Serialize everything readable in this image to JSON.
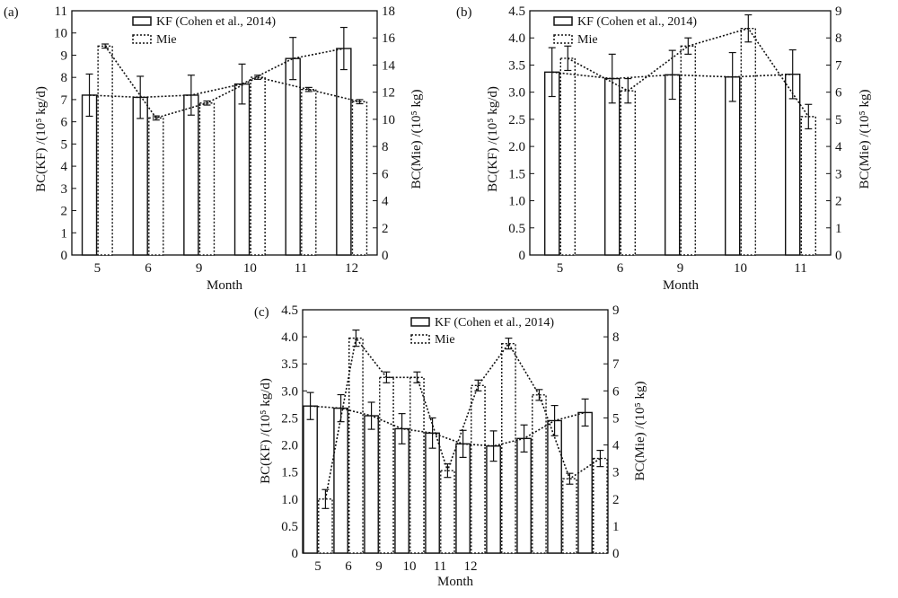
{
  "colors": {
    "ink": "#111111",
    "background": "#ffffff"
  },
  "chart_data": [
    {
      "panel_label": "(a)",
      "type": "bar",
      "categories": [
        "5",
        "6",
        "9",
        "10",
        "11",
        "12"
      ],
      "xlabel": "Month",
      "ylabel_left": "BC(KF) /(10⁵ kg/d)",
      "ylabel_right": "BC(Mie) /(10⁵ kg)",
      "ylim_left": [
        0,
        11
      ],
      "ylim_right": [
        0,
        18
      ],
      "yticks_left": [
        "0",
        "1",
        "2",
        "3",
        "4",
        "5",
        "6",
        "7",
        "8",
        "9",
        "10",
        "11"
      ],
      "yticks_right": [
        "0",
        "2",
        "4",
        "6",
        "8",
        "10",
        "12",
        "14",
        "16",
        "18"
      ],
      "legend_position": "top-center",
      "series": [
        {
          "name": "KF (Cohen et al., 2014)",
          "axis": "left",
          "style": "solid",
          "values": [
            7.2,
            7.1,
            7.2,
            7.7,
            8.85,
            9.3
          ],
          "errors": [
            0.95,
            0.95,
            0.9,
            0.9,
            0.95,
            0.95
          ]
        },
        {
          "name": "Mie",
          "axis": "right",
          "style": "dotted",
          "values": [
            15.4,
            10.1,
            11.2,
            13.1,
            12.2,
            11.3
          ],
          "errors": [
            0.15,
            0.15,
            0.15,
            0.15,
            0.15,
            0.15
          ]
        }
      ]
    },
    {
      "panel_label": "(b)",
      "type": "bar",
      "categories": [
        "5",
        "6",
        "9",
        "10",
        "11"
      ],
      "xlabel": "Month",
      "ylabel_left": "BC(KF) /(10⁵ kg/d)",
      "ylabel_right": "BC(Mie) /(10⁵ kg)",
      "ylim_left": [
        0,
        4.5
      ],
      "ylim_right": [
        0,
        9
      ],
      "yticks_left": [
        "0",
        "0.5",
        "1.0",
        "1.5",
        "2.0",
        "2.5",
        "3.0",
        "3.5",
        "4.0",
        "4.5"
      ],
      "yticks_right": [
        "0",
        "1",
        "2",
        "3",
        "4",
        "5",
        "6",
        "7",
        "8",
        "9"
      ],
      "legend_position": "top-center",
      "series": [
        {
          "name": "KF (Cohen et al., 2014)",
          "axis": "left",
          "style": "solid",
          "values": [
            3.37,
            3.25,
            3.32,
            3.28,
            3.33
          ],
          "errors": [
            0.45,
            0.45,
            0.45,
            0.45,
            0.45
          ]
        },
        {
          "name": "Mie",
          "axis": "right",
          "style": "dotted",
          "values": [
            7.25,
            6.05,
            7.7,
            8.35,
            5.1
          ],
          "errors": [
            0.45,
            0.45,
            0.3,
            0.5,
            0.45
          ]
        }
      ]
    },
    {
      "panel_label": "(c)",
      "type": "bar",
      "categories": [
        "5",
        "6",
        "9",
        "10",
        "11",
        "12",
        "",
        "",
        "",
        ""
      ],
      "xlabel": "Month",
      "ylabel_left": "BC(KF) /(10⁵ kg/d)",
      "ylabel_right": "BC(Mie) /(10⁵ kg)",
      "ylim_left": [
        0,
        4.5
      ],
      "ylim_right": [
        0,
        9
      ],
      "yticks_left": [
        "0",
        "0.5",
        "1.0",
        "1.5",
        "2.0",
        "2.5",
        "3.0",
        "3.5",
        "4.0",
        "4.5"
      ],
      "yticks_right": [
        "0",
        "1",
        "2",
        "3",
        "4",
        "5",
        "6",
        "7",
        "8",
        "9"
      ],
      "legend_position": "top-center",
      "series": [
        {
          "name": "KF (Cohen et al., 2014)",
          "axis": "left",
          "style": "solid",
          "values": [
            2.72,
            2.68,
            2.54,
            2.3,
            2.22,
            2.02,
            1.98,
            2.12,
            2.45,
            2.6
          ],
          "errors": [
            0.25,
            0.25,
            0.25,
            0.28,
            0.28,
            0.25,
            0.28,
            0.25,
            0.28,
            0.25
          ]
        },
        {
          "name": "Mie",
          "axis": "right",
          "style": "dotted",
          "values": [
            2.0,
            7.95,
            6.5,
            6.5,
            3.05,
            6.2,
            7.75,
            5.85,
            2.75,
            3.5
          ],
          "errors": [
            0.35,
            0.3,
            0.2,
            0.2,
            0.25,
            0.2,
            0.2,
            0.2,
            0.2,
            0.3
          ]
        }
      ]
    }
  ]
}
